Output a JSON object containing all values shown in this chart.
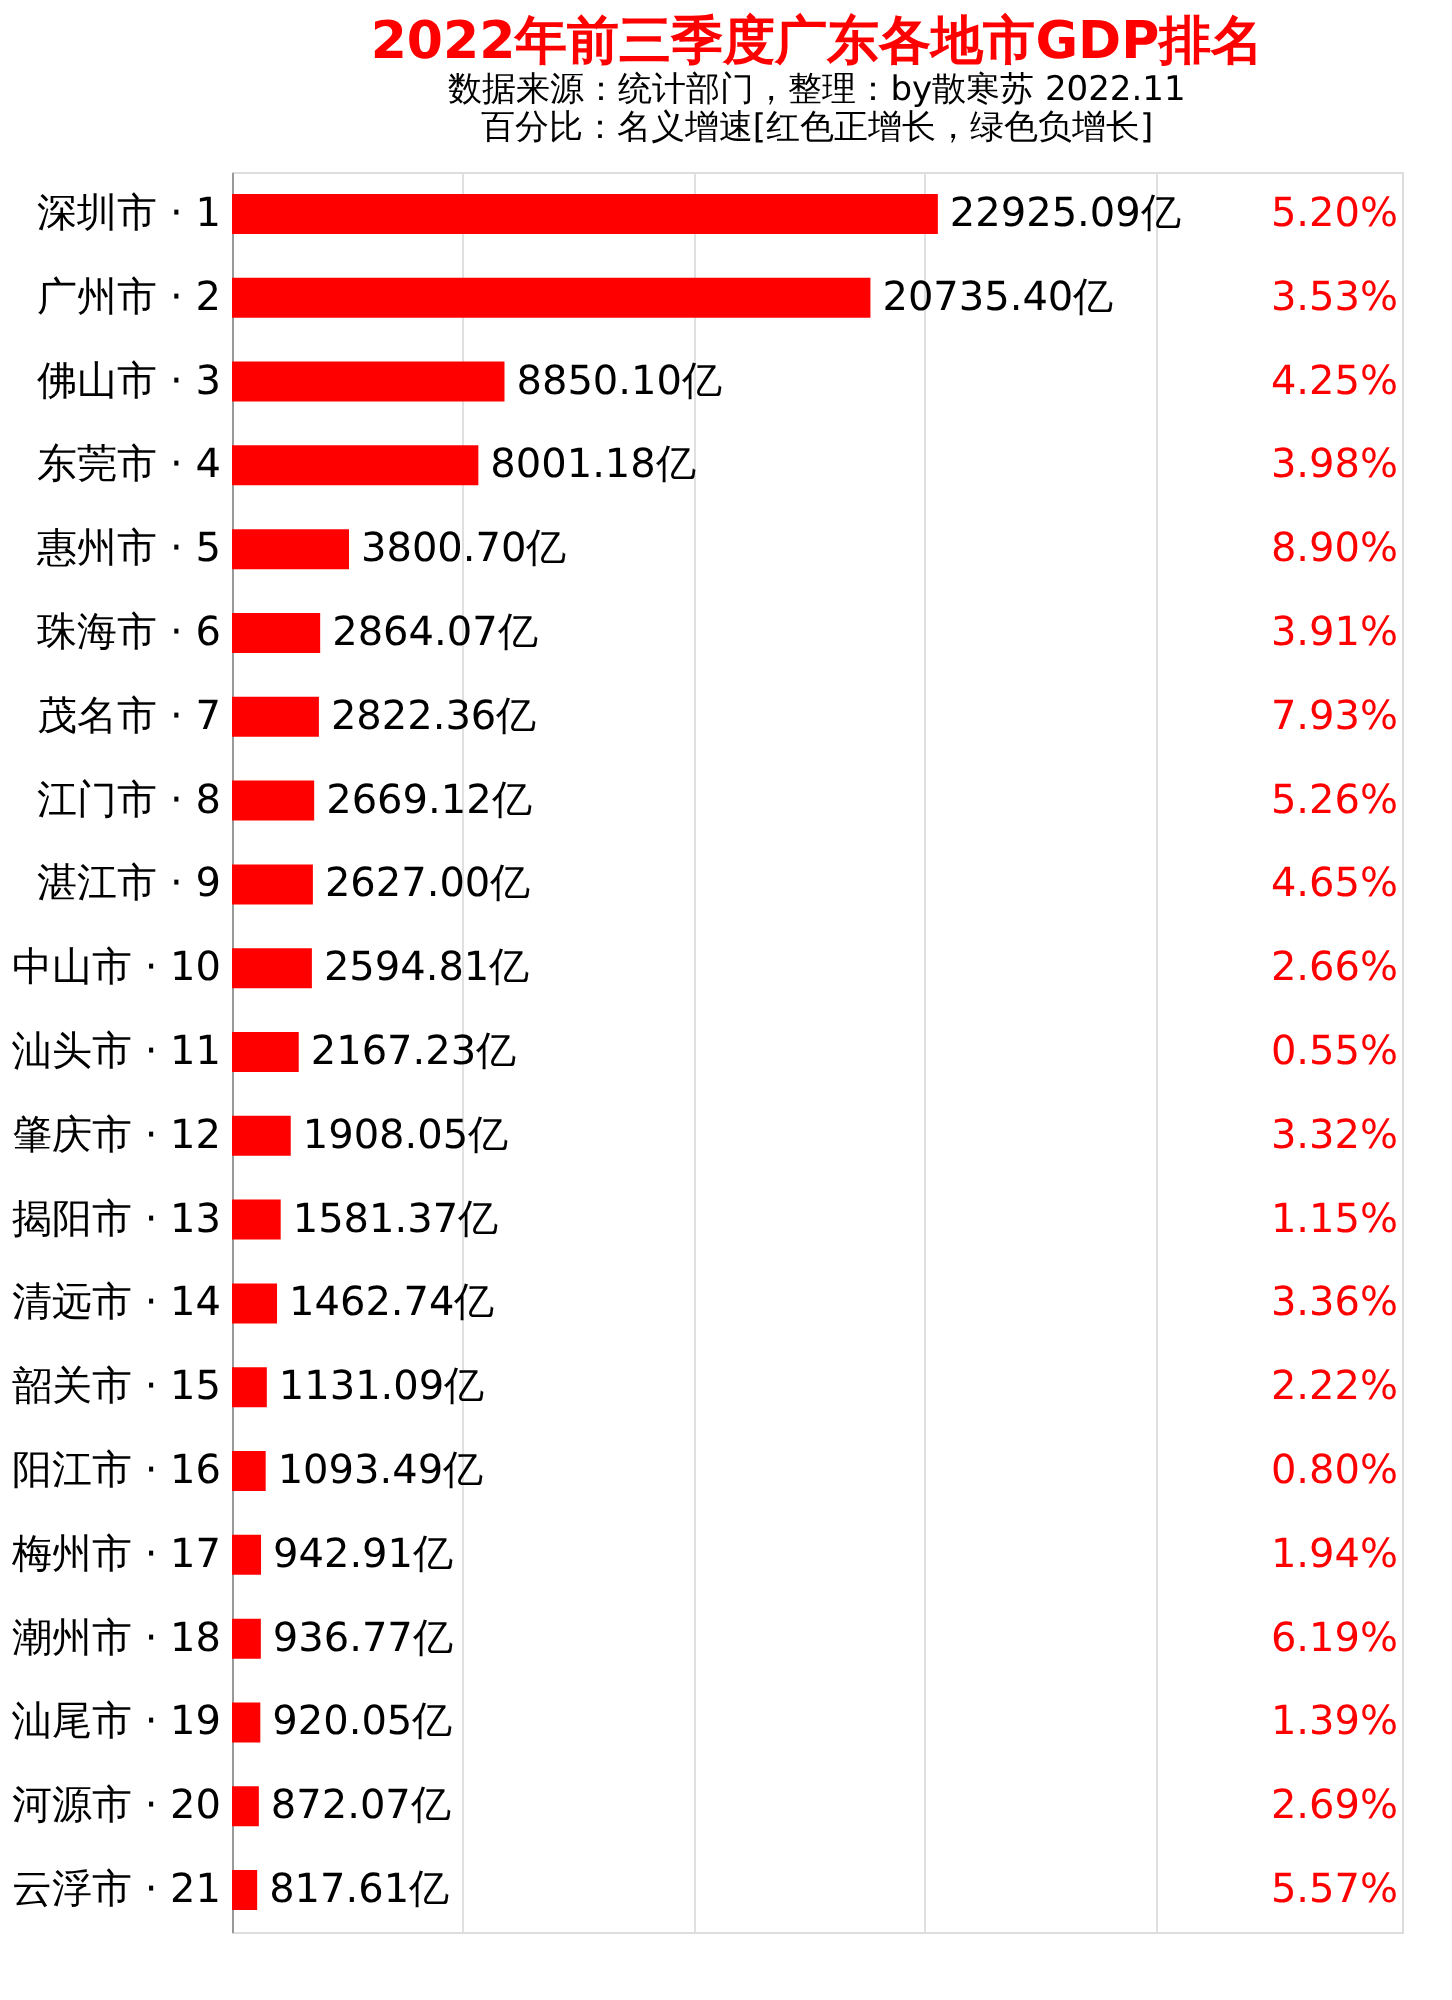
{
  "chart_data": {
    "type": "bar",
    "orientation": "horizontal",
    "title": "2022年前三季度广东各地市GDP排名",
    "subtitle": [
      "数据来源：统计部门，整理：by散寒苏  2022.11",
      "百分比：名义增速[红色正增长，绿色负增长]"
    ],
    "categories": [
      "深圳市 · 1",
      "广州市 · 2",
      "佛山市 · 3",
      "东莞市 · 4",
      "惠州市 · 5",
      "珠海市 · 6",
      "茂名市 · 7",
      "江门市 · 8",
      "湛江市 · 9",
      "中山市 · 10",
      "汕头市 · 11",
      "肇庆市 · 12",
      "揭阳市 · 13",
      "清远市 · 14",
      "韶关市 · 15",
      "阳江市 · 16",
      "梅州市 · 17",
      "潮州市 · 18",
      "汕尾市 · 19",
      "河源市 · 20",
      "云浮市 · 21"
    ],
    "series": [
      {
        "color": "#ff0000",
        "values": [
          22925.09,
          20735.4,
          8850.1,
          8001.18,
          3800.7,
          2864.07,
          2822.36,
          2669.12,
          2627.0,
          2594.81,
          2167.23,
          1908.05,
          1581.37,
          1462.74,
          1131.09,
          1093.49,
          942.91,
          936.77,
          920.05,
          872.07,
          817.61
        ],
        "value_labels": [
          "22925.09亿",
          "20735.40亿",
          "8850.10亿",
          "8001.18亿",
          "3800.70亿",
          "2864.07亿",
          "2822.36亿",
          "2669.12亿",
          "2627.00亿",
          "2594.81亿",
          "2167.23亿",
          "1908.05亿",
          "1581.37亿",
          "1462.74亿",
          "1131.09亿",
          "1093.49亿",
          "942.91亿",
          "936.77亿",
          "920.05亿",
          "872.07亿",
          "817.61亿"
        ]
      }
    ],
    "xlim": [
      0,
      38000
    ],
    "xticks": [
      {
        "value": 7500,
        "label": null
      },
      {
        "value": 15000,
        "label": null
      },
      {
        "value": 22500,
        "label": null
      },
      {
        "value": 30000,
        "label": null
      }
    ],
    "grid": "x",
    "tick_labels": "y",
    "annotations": [
      "5.20%",
      "3.53%",
      "4.25%",
      "3.98%",
      "8.90%",
      "3.91%",
      "7.93%",
      "5.26%",
      "4.65%",
      "2.66%",
      "0.55%",
      "3.32%",
      "1.15%",
      "3.36%",
      "2.22%",
      "0.80%",
      "1.94%",
      "6.19%",
      "1.39%",
      "2.69%",
      "5.57%"
    ]
  }
}
